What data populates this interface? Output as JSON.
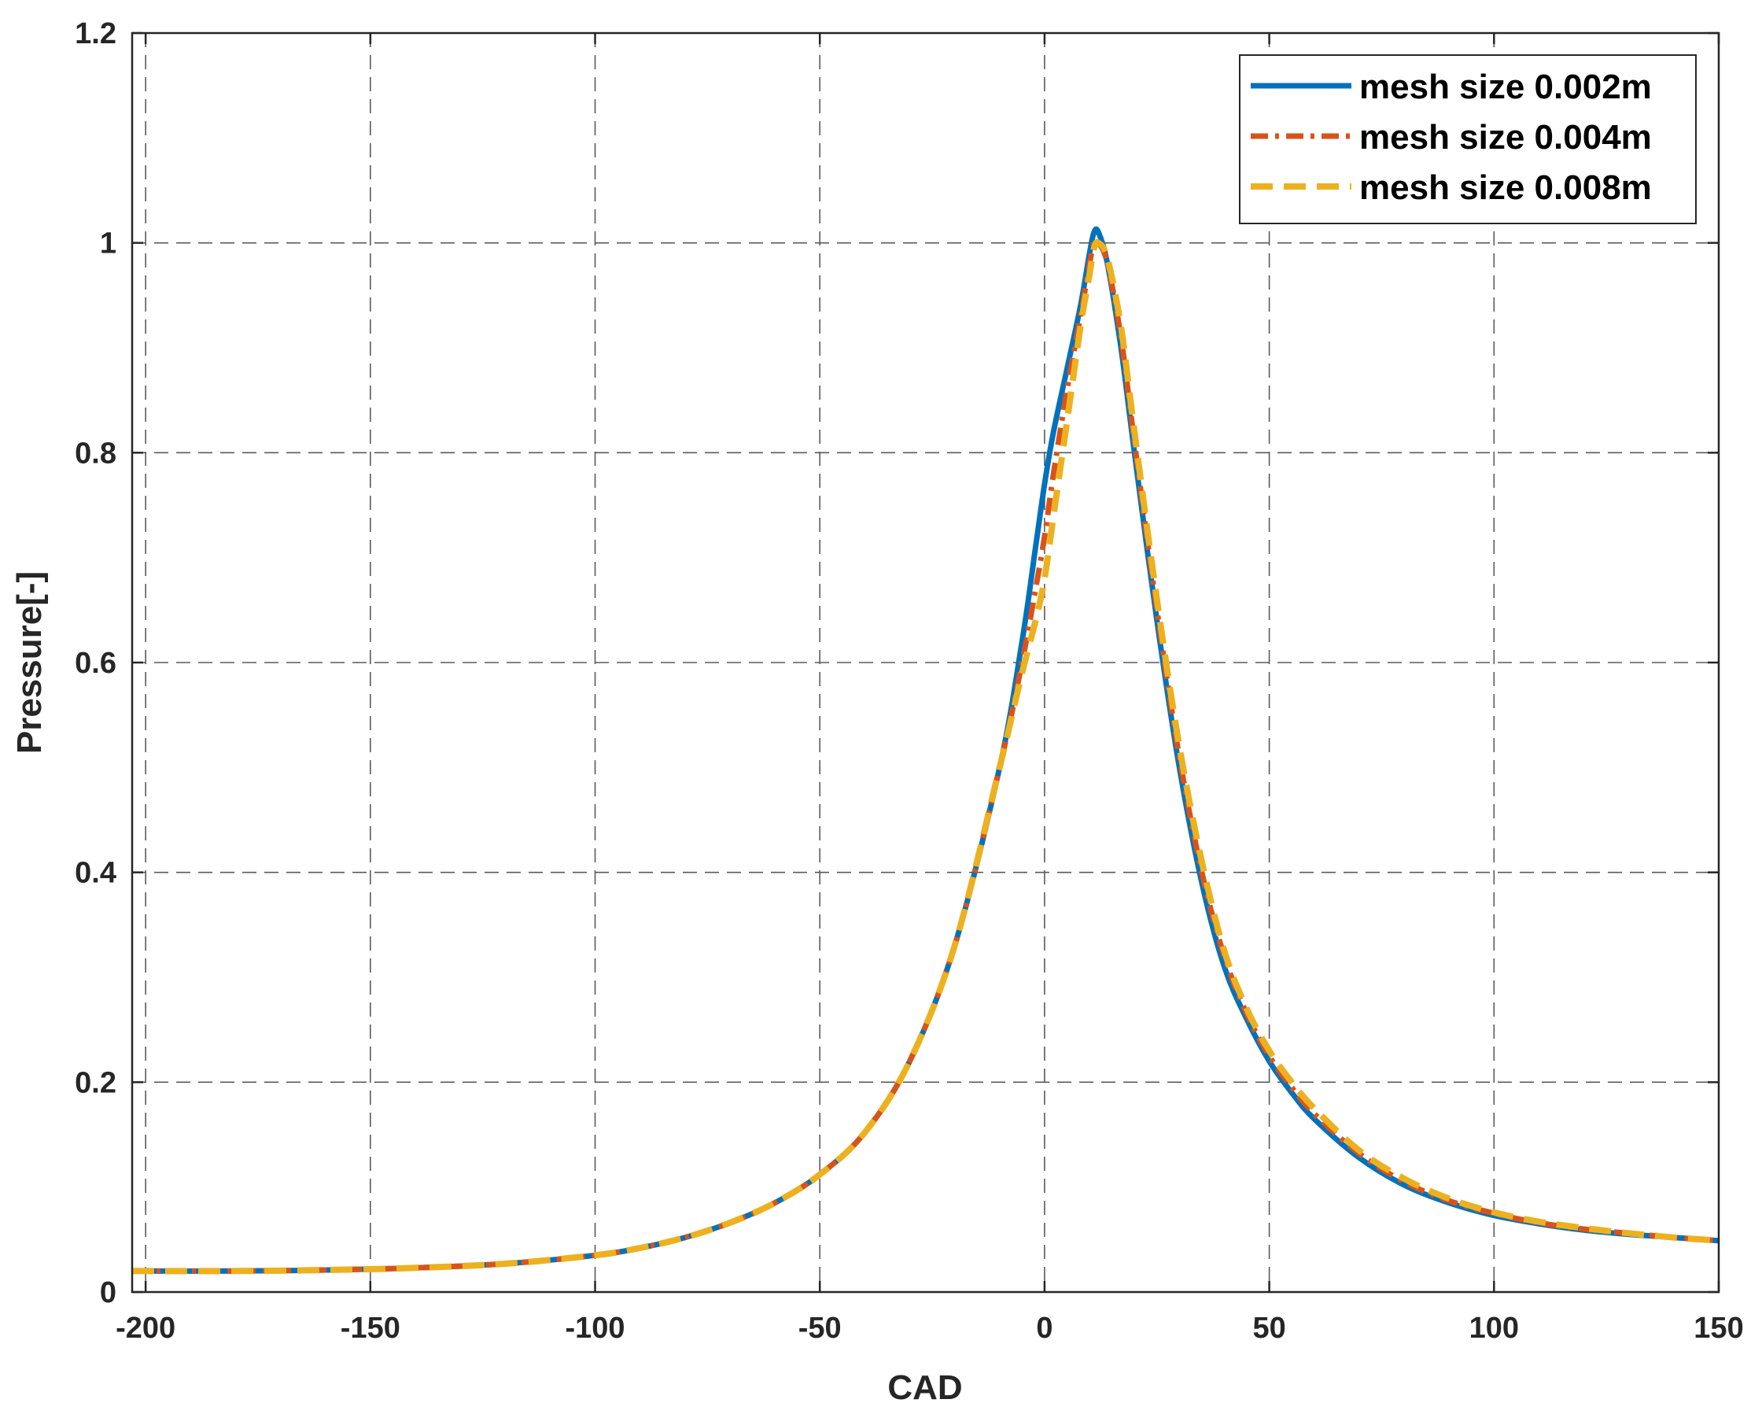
{
  "chart_data": {
    "type": "line",
    "xlabel": "CAD",
    "ylabel": "Pressure[-]",
    "xlim": [
      -203,
      150
    ],
    "ylim": [
      0,
      1.2
    ],
    "xticks": [
      -200,
      -150,
      -100,
      -50,
      0,
      50,
      100,
      150
    ],
    "yticks": [
      0,
      0.2,
      0.4,
      0.6,
      0.8,
      1,
      1.2
    ],
    "xtick_labels": [
      "-200",
      "-150",
      "-100",
      "-50",
      "0",
      "50",
      "100",
      "150"
    ],
    "ytick_labels": [
      "0",
      "0.2",
      "0.4",
      "0.6",
      "0.8",
      "1",
      "1.2"
    ],
    "grid": true,
    "legend_position": "top-right",
    "series": [
      {
        "name": "mesh size 0.002m",
        "color": "#0072BD",
        "style": "solid",
        "x": [
          -203,
          -180,
          -160,
          -140,
          -120,
          -100,
          -90,
          -80,
          -70,
          -60,
          -50,
          -40,
          -30,
          -20,
          -10,
          -5,
          -2,
          0,
          2,
          5,
          8,
          10,
          11,
          12,
          14,
          17,
          20,
          25,
          30,
          35,
          40,
          45,
          50,
          55,
          60,
          70,
          80,
          90,
          100,
          110,
          120,
          130,
          140,
          150
        ],
        "y": [
          0.02,
          0.02,
          0.021,
          0.023,
          0.027,
          0.035,
          0.042,
          0.052,
          0.066,
          0.085,
          0.112,
          0.152,
          0.22,
          0.33,
          0.5,
          0.62,
          0.71,
          0.77,
          0.82,
          0.88,
          0.94,
          0.99,
          1.01,
          1.01,
          0.98,
          0.9,
          0.8,
          0.64,
          0.5,
          0.39,
          0.31,
          0.26,
          0.22,
          0.19,
          0.165,
          0.128,
          0.102,
          0.085,
          0.073,
          0.065,
          0.059,
          0.055,
          0.052,
          0.049
        ]
      },
      {
        "name": "mesh size 0.004m",
        "color": "#D95319",
        "style": "dash-dot",
        "x": [
          -203,
          -180,
          -160,
          -140,
          -120,
          -100,
          -90,
          -80,
          -70,
          -60,
          -50,
          -40,
          -30,
          -20,
          -10,
          -5,
          -2,
          0,
          2,
          5,
          8,
          10,
          11,
          12,
          14,
          17,
          20,
          25,
          30,
          35,
          40,
          45,
          50,
          55,
          60,
          70,
          80,
          90,
          100,
          110,
          120,
          130,
          140,
          150
        ],
        "y": [
          0.02,
          0.02,
          0.021,
          0.023,
          0.027,
          0.035,
          0.042,
          0.052,
          0.066,
          0.085,
          0.112,
          0.152,
          0.22,
          0.33,
          0.5,
          0.6,
          0.67,
          0.72,
          0.78,
          0.86,
          0.93,
          0.98,
          1.0,
          1.0,
          0.98,
          0.91,
          0.81,
          0.65,
          0.51,
          0.4,
          0.32,
          0.265,
          0.225,
          0.195,
          0.17,
          0.132,
          0.105,
          0.087,
          0.075,
          0.066,
          0.06,
          0.056,
          0.052,
          0.049
        ]
      },
      {
        "name": "mesh size 0.008m",
        "color": "#EDB120",
        "style": "dashed",
        "x": [
          -203,
          -180,
          -160,
          -140,
          -120,
          -100,
          -90,
          -80,
          -70,
          -60,
          -50,
          -40,
          -30,
          -20,
          -10,
          -5,
          -2,
          0,
          2,
          5,
          8,
          10,
          11,
          12,
          14,
          17,
          20,
          25,
          30,
          35,
          40,
          45,
          50,
          55,
          60,
          70,
          80,
          90,
          100,
          110,
          120,
          130,
          140,
          150
        ],
        "y": [
          0.02,
          0.02,
          0.021,
          0.023,
          0.027,
          0.035,
          0.042,
          0.052,
          0.066,
          0.085,
          0.112,
          0.152,
          0.22,
          0.33,
          0.5,
          0.59,
          0.64,
          0.68,
          0.74,
          0.83,
          0.92,
          0.97,
          0.995,
          1.0,
          0.985,
          0.92,
          0.82,
          0.66,
          0.52,
          0.41,
          0.325,
          0.27,
          0.23,
          0.2,
          0.175,
          0.135,
          0.108,
          0.089,
          0.076,
          0.067,
          0.061,
          0.056,
          0.052,
          0.049
        ]
      }
    ]
  }
}
